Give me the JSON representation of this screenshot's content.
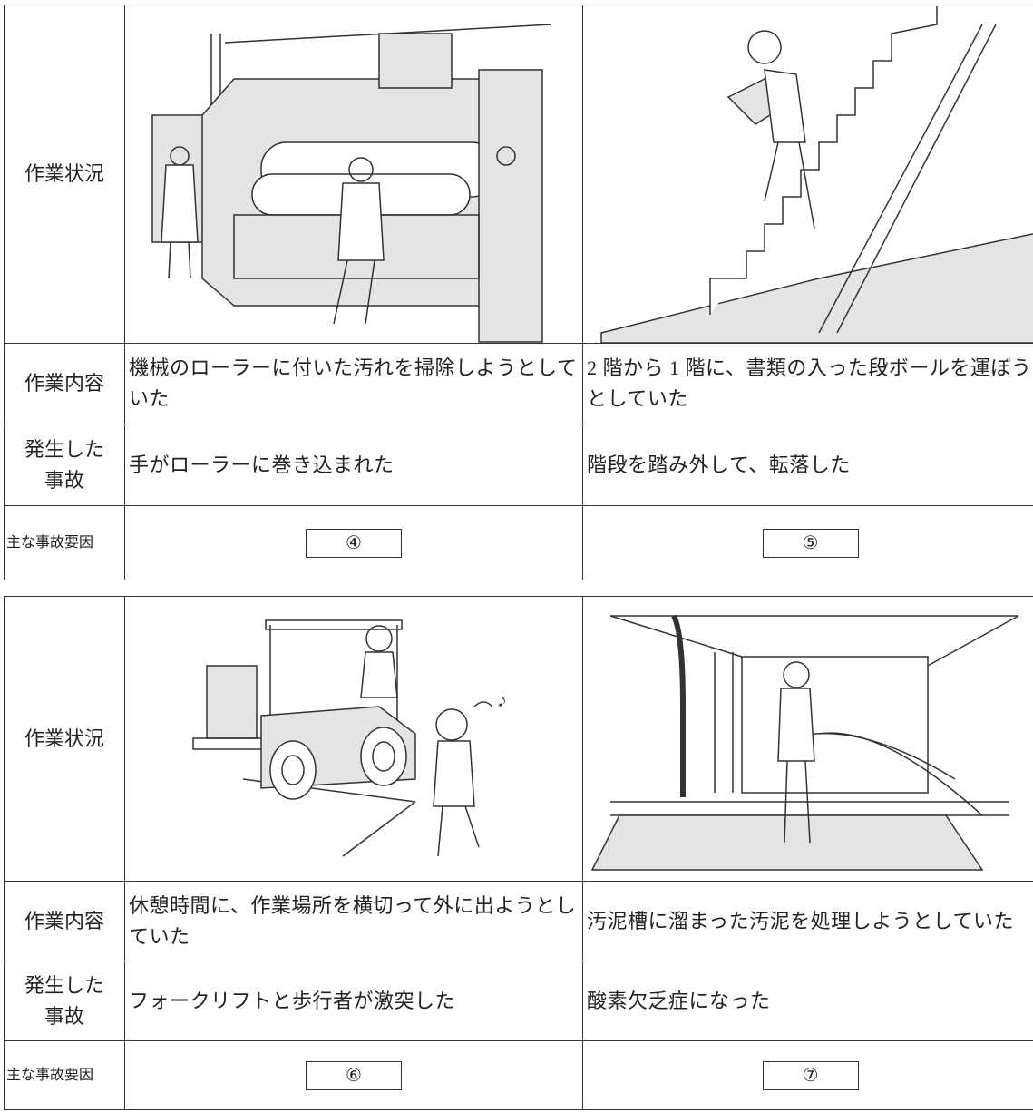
{
  "tables": [
    {
      "labels": {
        "situation": "作業状況",
        "content": "作業内容",
        "accident": "発生した事故",
        "factor": "主な事故要因"
      },
      "cases": [
        {
          "content": "機械のローラーに付いた汚れを掃除しようとしていた",
          "accident": "手がローラーに巻き込まれた",
          "factor": "④"
        },
        {
          "content": "2 階から 1 階に、書類の入った段ボールを運ぼうとしていた",
          "accident": "階段を踏み外して、転落した",
          "factor": "⑤"
        }
      ]
    },
    {
      "labels": {
        "situation": "作業状況",
        "content": "作業内容",
        "accident": "発生した事故",
        "factor": "主な事故要因"
      },
      "cases": [
        {
          "content": "休憩時間に、作業場所を横切って外に出ようとしていた",
          "accident": "フォークリフトと歩行者が激突した",
          "factor": "⑥"
        },
        {
          "content": "汚泥槽に溜まった汚泥を処理しようとしていた",
          "accident": "酸素欠乏症になった",
          "factor": "⑦"
        }
      ]
    }
  ]
}
